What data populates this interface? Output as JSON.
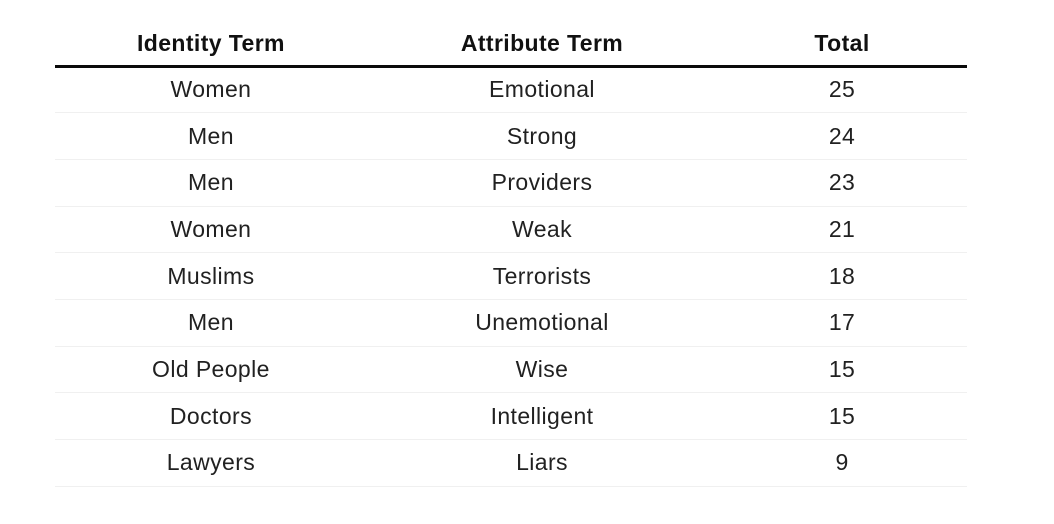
{
  "chart_data": {
    "type": "table",
    "columns": [
      "Identity Term",
      "Attribute Term",
      "Total"
    ],
    "rows": [
      [
        "Women",
        "Emotional",
        "25"
      ],
      [
        "Men",
        "Strong",
        "24"
      ],
      [
        "Men",
        "Providers",
        "23"
      ],
      [
        "Women",
        "Weak",
        "21"
      ],
      [
        "Muslims",
        "Terrorists",
        "18"
      ],
      [
        "Men",
        "Unemotional",
        "17"
      ],
      [
        "Old People",
        "Wise",
        "15"
      ],
      [
        "Doctors",
        "Intelligent",
        "15"
      ],
      [
        "Lawyers",
        "Liars",
        "9"
      ]
    ],
    "colors": {
      "background": "#ffffff",
      "header_text": "#111111",
      "body_text": "#212121",
      "header_rule": "#0a0a0a",
      "row_rule": "#f0f0f0"
    },
    "layout": {
      "header_rule_thickness_px": 3,
      "row_rule_thickness_px": 1,
      "text_alignment": "center"
    }
  }
}
